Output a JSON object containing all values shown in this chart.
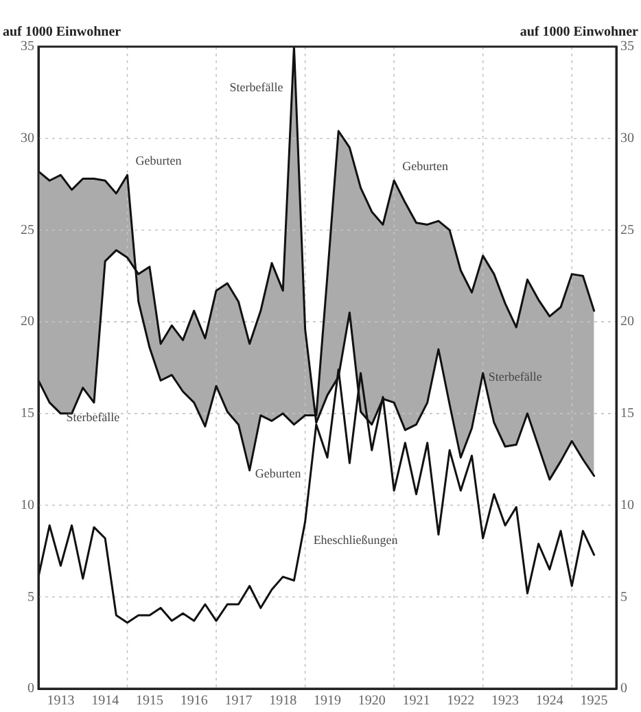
{
  "chart_data": {
    "type": "line",
    "ylabel": "auf 1000 Einwohner",
    "y2label": "auf 1000 Einwohner",
    "x": [
      1913,
      1913.25,
      1913.5,
      1913.75,
      1914,
      1914.25,
      1914.5,
      1914.75,
      1915,
      1915.25,
      1915.5,
      1915.75,
      1916,
      1916.25,
      1916.5,
      1916.75,
      1917,
      1917.25,
      1917.5,
      1917.75,
      1918,
      1918.25,
      1918.5,
      1918.75,
      1919,
      1919.25,
      1919.5,
      1919.75,
      1920,
      1920.25,
      1920.5,
      1920.75,
      1921,
      1921.25,
      1921.5,
      1921.75,
      1922,
      1922.25,
      1922.5,
      1922.75,
      1923,
      1923.25,
      1923.5,
      1923.75,
      1924,
      1924.25,
      1924.5,
      1924.75,
      1925,
      1925.25,
      1925.5
    ],
    "series": [
      {
        "type": "line",
        "color": "#111111",
        "values": [
          28.2,
          27.7,
          28.0,
          27.2,
          27.8,
          27.8,
          27.7,
          27.0,
          28.0,
          21.1,
          18.6,
          16.8,
          17.1,
          16.2,
          15.6,
          14.3,
          16.5,
          15.1,
          14.4,
          11.9,
          14.9,
          14.6,
          15.0,
          14.4,
          14.9,
          14.9,
          22.5,
          30.4,
          29.5,
          27.3,
          26.0,
          25.3,
          27.7,
          26.5,
          25.4,
          25.3,
          25.5,
          25.0,
          22.8,
          21.6,
          23.6,
          22.6,
          21.0,
          19.7,
          22.3,
          21.2,
          20.3,
          20.8,
          22.6,
          22.5,
          20.6
        ]
      },
      {
        "type": "line",
        "color": "#111111",
        "values": [
          16.8,
          15.6,
          15.0,
          15.0,
          16.4,
          15.6,
          23.3,
          23.9,
          23.5,
          22.6,
          23.0,
          18.8,
          19.8,
          19.0,
          20.6,
          19.1,
          21.7,
          22.1,
          21.1,
          18.8,
          20.6,
          23.2,
          21.7,
          35.0,
          19.6,
          14.5,
          16.0,
          17.0,
          20.5,
          15.1,
          14.4,
          15.8,
          15.6,
          14.1,
          14.4,
          15.6,
          18.5,
          15.5,
          12.6,
          14.2,
          17.2,
          14.5,
          13.2,
          13.3,
          15.0,
          13.2,
          11.4,
          12.4,
          13.5,
          12.5,
          11.6
        ]
      },
      {
        "type": "line",
        "color": "#111111",
        "values": [
          6.1,
          8.9,
          6.7,
          8.9,
          6.0,
          8.8,
          8.2,
          4.0,
          3.6,
          4.0,
          4.0,
          4.4,
          3.7,
          4.1,
          3.7,
          4.6,
          3.7,
          4.6,
          4.6,
          5.6,
          4.4,
          5.4,
          6.1,
          5.9,
          9.1,
          14.4,
          12.6,
          17.4,
          12.3,
          17.2,
          13.0,
          15.9,
          10.8,
          13.4,
          10.6,
          13.4,
          8.4,
          13.0,
          10.8,
          12.7,
          8.2,
          10.6,
          8.9,
          9.9,
          5.2,
          7.9,
          6.5,
          8.6,
          5.6,
          8.6,
          7.3
        ]
      }
    ],
    "xlim": [
      1913,
      1926
    ],
    "xticks": [
      {
        "value": 1913.5,
        "label": "1913"
      },
      {
        "value": 1914.5,
        "label": "1914"
      },
      {
        "value": 1915,
        "label": null
      },
      {
        "value": 1915.5,
        "label": "1915"
      },
      {
        "value": 1916.5,
        "label": "1916"
      },
      {
        "value": 1917,
        "label": null
      },
      {
        "value": 1917.5,
        "label": "1917"
      },
      {
        "value": 1918.5,
        "label": "1918"
      },
      {
        "value": 1919,
        "label": null
      },
      {
        "value": 1919.5,
        "label": "1919"
      },
      {
        "value": 1920.5,
        "label": "1920"
      },
      {
        "value": 1921,
        "label": null
      },
      {
        "value": 1921.5,
        "label": "1921"
      },
      {
        "value": 1922.5,
        "label": "1922"
      },
      {
        "value": 1923,
        "label": null
      },
      {
        "value": 1923.5,
        "label": "1923"
      },
      {
        "value": 1924.5,
        "label": "1924"
      },
      {
        "value": 1925,
        "label": null
      },
      {
        "value": 1925.5,
        "label": "1925"
      }
    ],
    "ylim": [
      0,
      35
    ],
    "yticks": [
      0,
      5,
      10,
      15,
      20,
      25,
      30,
      35
    ],
    "y2lim": [
      0,
      35
    ],
    "y2ticks": [
      0,
      5,
      10,
      15,
      20,
      25,
      30,
      35
    ],
    "annotations": [
      {
        "text": "Sterbefälle",
        "x": 1918.75,
        "y": 35.0
      },
      {
        "text": "Geburten",
        "x": 1915,
        "y": 28.0
      },
      {
        "text": "Geburten",
        "x": 1921,
        "y": 27.7
      },
      {
        "text": "Sterbefälle",
        "x": 1913.5,
        "y": 15.0
      },
      {
        "text": "Geburten",
        "x": 1917.75,
        "y": 11.9
      },
      {
        "text": "Eheschließungen",
        "x": 1919,
        "y": 9.1
      },
      {
        "text": "Sterbefälle",
        "x": 1923,
        "y": 17.2
      }
    ],
    "grid": true,
    "legend": false,
    "marker": "none",
    "line_style": "solid"
  }
}
